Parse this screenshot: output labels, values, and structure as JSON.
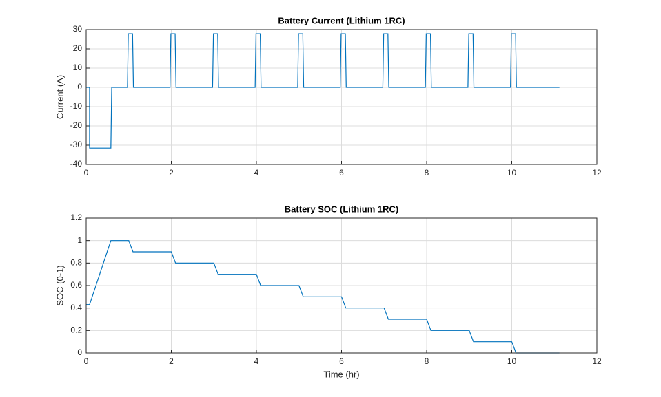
{
  "chart_data": [
    {
      "type": "line",
      "title": "Battery Current (Lithium 1RC)",
      "ylabel": "Current (A)",
      "x": [
        0,
        0.08,
        0.08,
        0.58,
        0.6,
        0.97,
        0.99,
        1.09,
        1.11,
        1.97,
        1.99,
        2.09,
        2.11,
        2.97,
        2.99,
        3.09,
        3.11,
        3.97,
        3.99,
        4.09,
        4.11,
        4.97,
        4.99,
        5.09,
        5.11,
        5.97,
        5.99,
        6.09,
        6.11,
        6.97,
        6.99,
        7.09,
        7.11,
        7.97,
        7.99,
        8.09,
        8.11,
        8.97,
        8.99,
        9.09,
        9.11,
        9.97,
        9.99,
        10.09,
        10.11,
        11.12
      ],
      "values": [
        0,
        0,
        -31.5,
        -31.5,
        0,
        0,
        27.8,
        27.8,
        0,
        0,
        27.8,
        27.8,
        0,
        0,
        27.8,
        27.8,
        0,
        0,
        27.8,
        27.8,
        0,
        0,
        27.8,
        27.8,
        0,
        0,
        27.8,
        27.8,
        0,
        0,
        27.8,
        27.8,
        0,
        0,
        27.8,
        27.8,
        0,
        0,
        27.8,
        27.8,
        0,
        0,
        27.8,
        27.8,
        0,
        0
      ],
      "color": "#0072bd",
      "xlim": [
        0,
        12
      ],
      "xticks": [
        0,
        2,
        4,
        6,
        8,
        10,
        12
      ],
      "ylim": [
        -40,
        30
      ],
      "yticks": [
        -40,
        -30,
        -20,
        -10,
        0,
        10,
        20,
        30
      ],
      "grid": true
    },
    {
      "type": "line",
      "title": "Battery SOC (Lithium 1RC)",
      "xlabel": "Time (hr)",
      "ylabel": "SOC (0-1)",
      "x": [
        0,
        0.08,
        0.58,
        1.0,
        1.1,
        2.0,
        2.1,
        3.0,
        3.1,
        4.0,
        4.1,
        5.0,
        5.1,
        6.0,
        6.1,
        7.0,
        7.1,
        8.0,
        8.1,
        9.0,
        9.1,
        10.0,
        10.1,
        11.12
      ],
      "values": [
        0.43,
        0.43,
        1.0,
        1.0,
        0.9,
        0.9,
        0.8,
        0.8,
        0.7,
        0.7,
        0.6,
        0.6,
        0.5,
        0.5,
        0.4,
        0.4,
        0.3,
        0.3,
        0.2,
        0.2,
        0.1,
        0.1,
        0,
        0
      ],
      "color": "#0072bd",
      "xlim": [
        0,
        12
      ],
      "xticks": [
        0,
        2,
        4,
        6,
        8,
        10,
        12
      ],
      "ylim": [
        0,
        1.2
      ],
      "yticks": [
        0,
        0.2,
        0.4,
        0.6,
        0.8,
        1,
        1.2
      ],
      "grid": true
    }
  ]
}
